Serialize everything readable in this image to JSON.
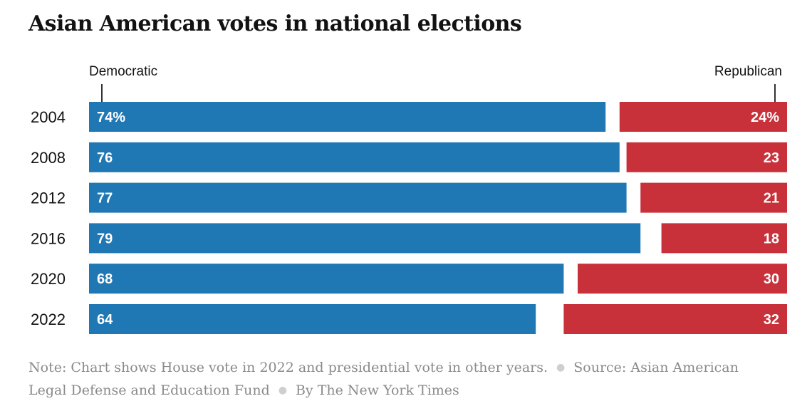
{
  "title": "Asian American votes in national elections",
  "legend": {
    "dem": "Democratic",
    "rep": "Republican"
  },
  "colors": {
    "dem": "#1f77b4",
    "rep": "#c8313a"
  },
  "chart_data": {
    "type": "bar",
    "title": "Asian American votes in national elections",
    "categories": [
      "2004",
      "2008",
      "2012",
      "2016",
      "2020",
      "2022"
    ],
    "series": [
      {
        "name": "Democratic",
        "values": [
          74,
          76,
          77,
          79,
          68,
          64
        ],
        "labels": [
          "74%",
          "76",
          "77",
          "79",
          "68",
          "64"
        ]
      },
      {
        "name": "Republican",
        "values": [
          24,
          23,
          21,
          18,
          30,
          32
        ],
        "labels": [
          "24%",
          "23",
          "21",
          "18",
          "30",
          "32"
        ]
      }
    ],
    "stacking": "Democratic from left, Republican from right",
    "xlim": [
      0,
      100
    ],
    "grid": false
  },
  "footer": {
    "note": "Note: Chart shows House vote in 2022 and presidential vote in other years.",
    "source": "Source: Asian American Legal Defense and Education Fund",
    "byline": "By The New York Times"
  }
}
